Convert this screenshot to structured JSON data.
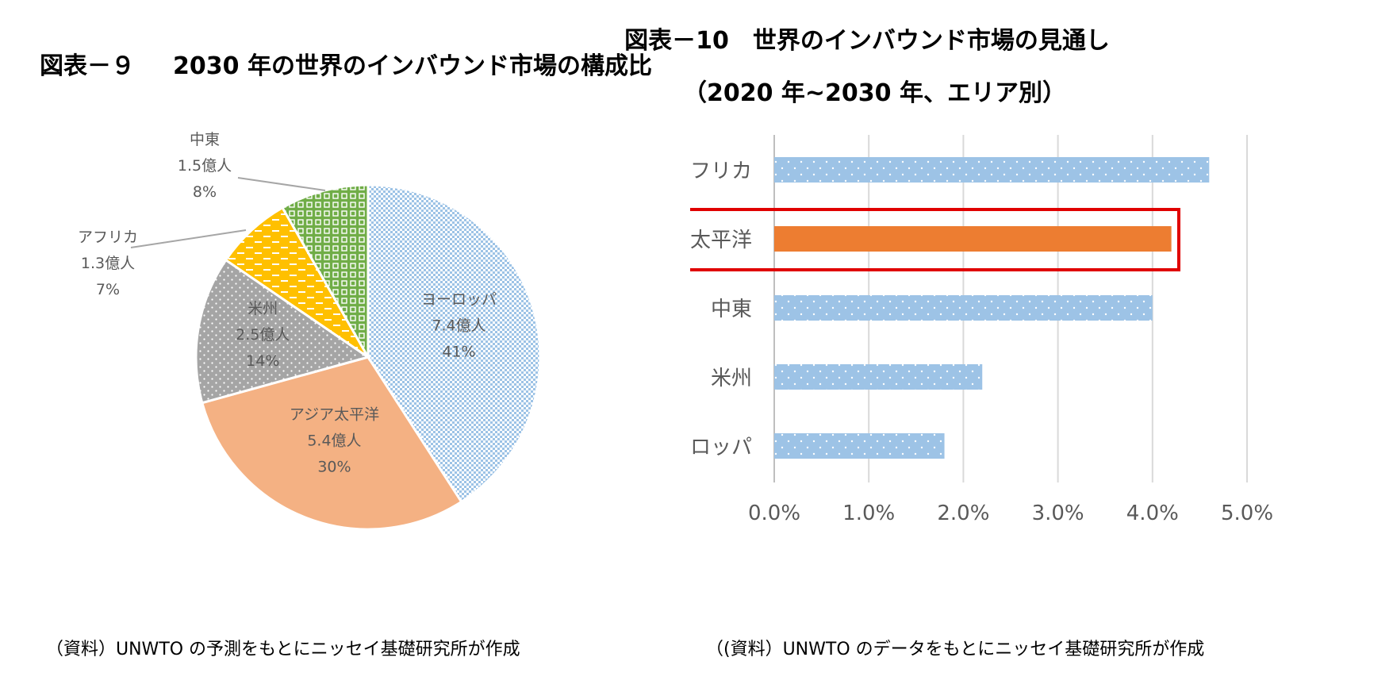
{
  "left": {
    "title_fig": "図表－９",
    "title_text": "2030 年の世界のインバウンド市場の構成比",
    "source": "（資料）UNWTO の予測をもとにニッセイ基礎研究所が作成"
  },
  "right": {
    "title_line1": "図表－10　世界のインバウンド市場の見通し",
    "title_line2": "（2020 年~2030 年、エリア別）",
    "source": "（(資料）UNWTO のデータをもとにニッセイ基礎研究所が作成"
  },
  "chart_data": [
    {
      "type": "pie",
      "title": "2030 年の世界のインバウンド市場の構成比",
      "slices": [
        {
          "name": "ヨーロッパ",
          "value_label": "7.4億人",
          "percent_label": "41%",
          "value": 7.4,
          "color": "#9dc3e6",
          "pattern": "check"
        },
        {
          "name": "アジア太平洋",
          "value_label": "5.4億人",
          "percent_label": "30%",
          "value": 5.4,
          "color": "#f4b183",
          "pattern": "solid"
        },
        {
          "name": "米州",
          "value_label": "2.5億人",
          "percent_label": "14%",
          "value": 2.5,
          "color": "#a5a5a5",
          "pattern": "dots"
        },
        {
          "name": "アフリカ",
          "value_label": "1.3億人",
          "percent_label": "7%",
          "value": 1.3,
          "color": "#ffc000",
          "pattern": "dashes"
        },
        {
          "name": "中東",
          "value_label": "1.5億人",
          "percent_label": "8%",
          "value": 1.5,
          "color": "#70ad47",
          "pattern": "grid"
        }
      ]
    },
    {
      "type": "bar",
      "orientation": "horizontal",
      "title": "世界のインバウンド市場の見通し（2020 年~2030 年、エリア別）",
      "categories": [
        "アフリカ",
        "アジア太平洋",
        "中東",
        "米州",
        "ヨーロッパ"
      ],
      "values": [
        4.6,
        4.2,
        4.0,
        2.2,
        1.8
      ],
      "unit": "%",
      "xlim": [
        0,
        5
      ],
      "x_ticks": [
        "0.0%",
        "1.0%",
        "2.0%",
        "3.0%",
        "4.0%",
        "5.0%"
      ],
      "grid": true,
      "highlight": {
        "category": "アジア太平洋",
        "bar_color": "#ed7d31",
        "box_color": "#e00000"
      },
      "bar_color": "#9dc3e6",
      "bar_pattern": "dots"
    }
  ]
}
